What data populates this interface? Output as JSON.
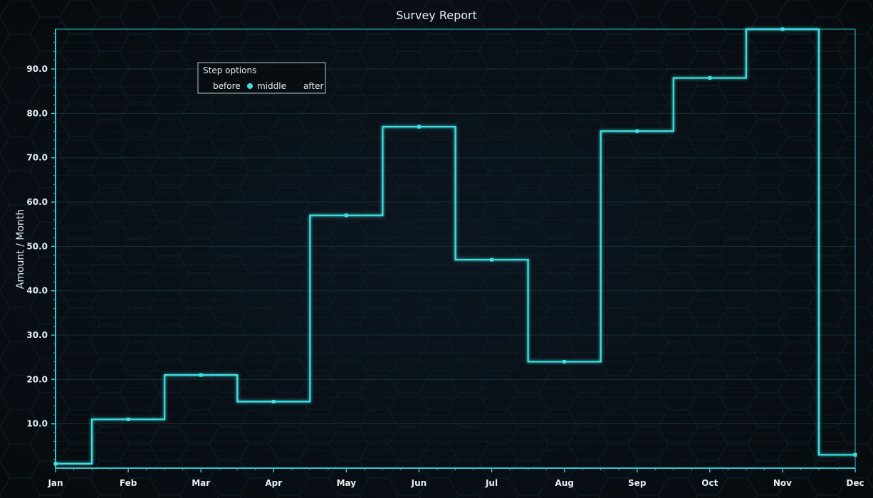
{
  "chart_data": {
    "type": "line",
    "step": "middle",
    "title": "Survey Report",
    "xlabel": "",
    "ylabel": "Amount / Month",
    "categories": [
      "Jan",
      "Feb",
      "Mar",
      "Apr",
      "May",
      "Jun",
      "Jul",
      "Aug",
      "Sep",
      "Oct",
      "Nov",
      "Dec"
    ],
    "series": [
      {
        "values": [
          1,
          11,
          21,
          15,
          57,
          77,
          47,
          24,
          76,
          88,
          99,
          3
        ]
      }
    ],
    "ylim": [
      0,
      99
    ],
    "yticks": [
      "10.0",
      "20.0",
      "30.0",
      "40.0",
      "50.0",
      "60.0",
      "70.0",
      "80.0",
      "90.0"
    ],
    "grid": true,
    "legend": {
      "title": "Step options",
      "options": [
        "before",
        "middle",
        "after"
      ],
      "selected": "middle",
      "placement": "top-left"
    },
    "colors": {
      "line": "#3fe0e0",
      "axis": "#2ac9cf",
      "background": "#070b10",
      "text": "#e6eef2"
    }
  }
}
